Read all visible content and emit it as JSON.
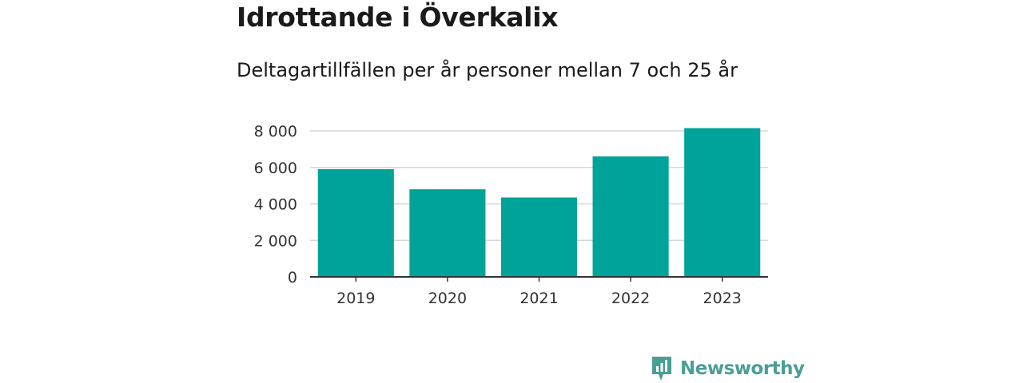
{
  "header": {
    "title": "Idrottande i Överkalix",
    "subtitle": "Deltagartillfällen per år personer mellan 7 och 25 år"
  },
  "chart_data": {
    "type": "bar",
    "categories": [
      "2019",
      "2020",
      "2021",
      "2022",
      "2023"
    ],
    "values": [
      5900,
      4800,
      4350,
      6600,
      8150
    ],
    "ylim": [
      0,
      8000
    ],
    "yticks": [
      0,
      2000,
      4000,
      6000,
      8000
    ],
    "ytick_labels": [
      "0",
      "2 000",
      "4 000",
      "6 000",
      "8 000"
    ],
    "grid": true,
    "bar_color": "#00a399"
  },
  "brand": {
    "name": "Newsworthy",
    "icon": "bar-chart-icon",
    "color": "#4a9e96"
  }
}
